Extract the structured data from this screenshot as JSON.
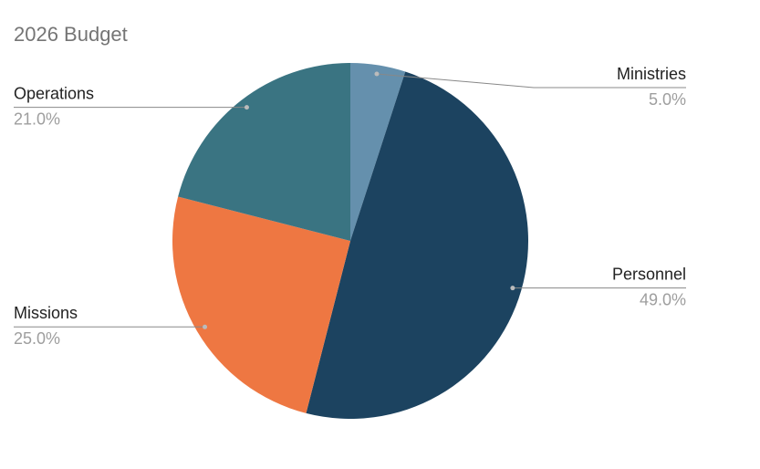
{
  "chart_data": {
    "type": "pie",
    "title": "2026 Budget",
    "categories": [
      "Ministries",
      "Personnel",
      "Missions",
      "Operations"
    ],
    "values": [
      5,
      49,
      25,
      21
    ],
    "value_labels": [
      "5.0%",
      "49.0%",
      "25.0%",
      "21.0%"
    ],
    "colors": [
      "#6590ad",
      "#1c4360",
      "#ee7742",
      "#3a7482"
    ]
  }
}
